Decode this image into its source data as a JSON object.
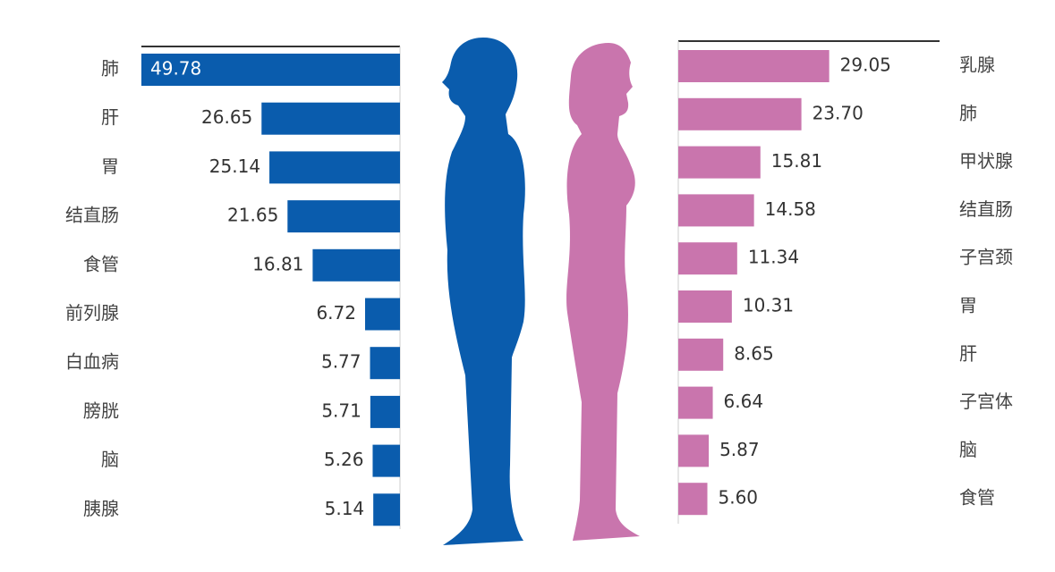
{
  "chart_data": [
    {
      "type": "bar",
      "orientation": "horizontal",
      "categories": [
        "肺",
        "肝",
        "胃",
        "结直肠",
        "食管",
        "前列腺",
        "白血病",
        "膀胱",
        "脑",
        "胰腺"
      ],
      "values": [
        49.78,
        26.65,
        25.14,
        21.65,
        16.81,
        6.72,
        5.77,
        5.71,
        5.26,
        5.14
      ],
      "value_labels": [
        "49.78",
        "26.65",
        "25.14",
        "21.65",
        "16.81",
        "6.72",
        "5.77",
        "5.71",
        "5.26",
        "5.14"
      ],
      "color": "#0a5cad"
    },
    {
      "type": "bar",
      "orientation": "horizontal",
      "categories": [
        "乳腺",
        "肺",
        "甲状腺",
        "结直肠",
        "子宫颈",
        "胃",
        "肝",
        "子宫体",
        "脑",
        "食管"
      ],
      "values": [
        29.05,
        23.7,
        15.81,
        14.58,
        11.34,
        10.31,
        8.65,
        6.64,
        5.87,
        5.6
      ],
      "value_labels": [
        "29.05",
        "23.70",
        "15.81",
        "14.58",
        "11.34",
        "10.31",
        "8.65",
        "6.64",
        "5.87",
        "5.60"
      ],
      "color": "#c975ad"
    }
  ]
}
